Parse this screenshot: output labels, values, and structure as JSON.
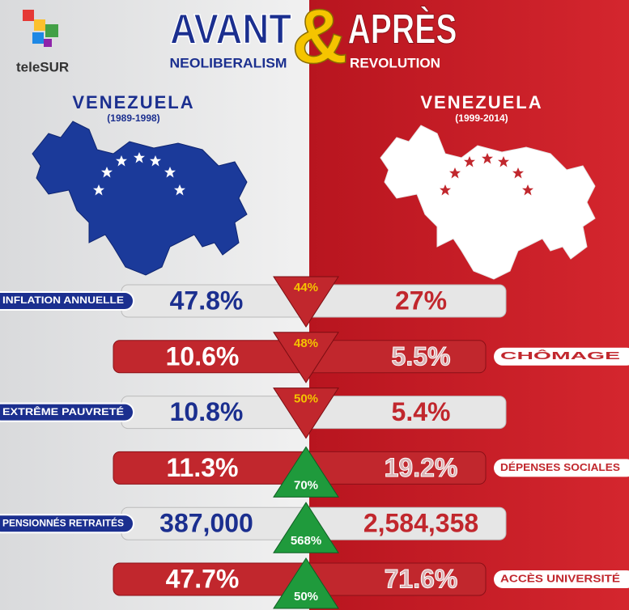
{
  "header": {
    "brand": "teleSUR",
    "title_left": "AVANT",
    "ampersand": "&",
    "title_right": "APRÈS",
    "subtitle_left": "NEOLIBERALISM",
    "subtitle_right": "REVOLUTION"
  },
  "left_panel": {
    "country": "VENEZUELA",
    "period": "(1989-1998)"
  },
  "right_panel": {
    "country": "VENEZUELA",
    "period": "(1999-2014)"
  },
  "rows": [
    {
      "label": "INFLATION ANNUELLE",
      "before": "47.8%",
      "change": "44%",
      "after": "27%"
    },
    {
      "label": "CHÔMAGE",
      "before": "10.6%",
      "change": "48%",
      "after": "5.5%"
    },
    {
      "label": "EXTRÊME PAUVRETÉ",
      "before": "10.8%",
      "change": "50%",
      "after": "5.4%"
    },
    {
      "label": "DÉPENSES SOCIALES",
      "before": "11.3%",
      "change": "70%",
      "after": "19.2%"
    },
    {
      "label": "PENSIONNÉS RETRAITÉS",
      "before": "387,000",
      "change": "568%",
      "after": "2,584,358"
    },
    {
      "label": "ACCÈS UNIVERSITÉ",
      "before": "47.7%",
      "change": "50%",
      "after": "71.6%"
    }
  ]
}
